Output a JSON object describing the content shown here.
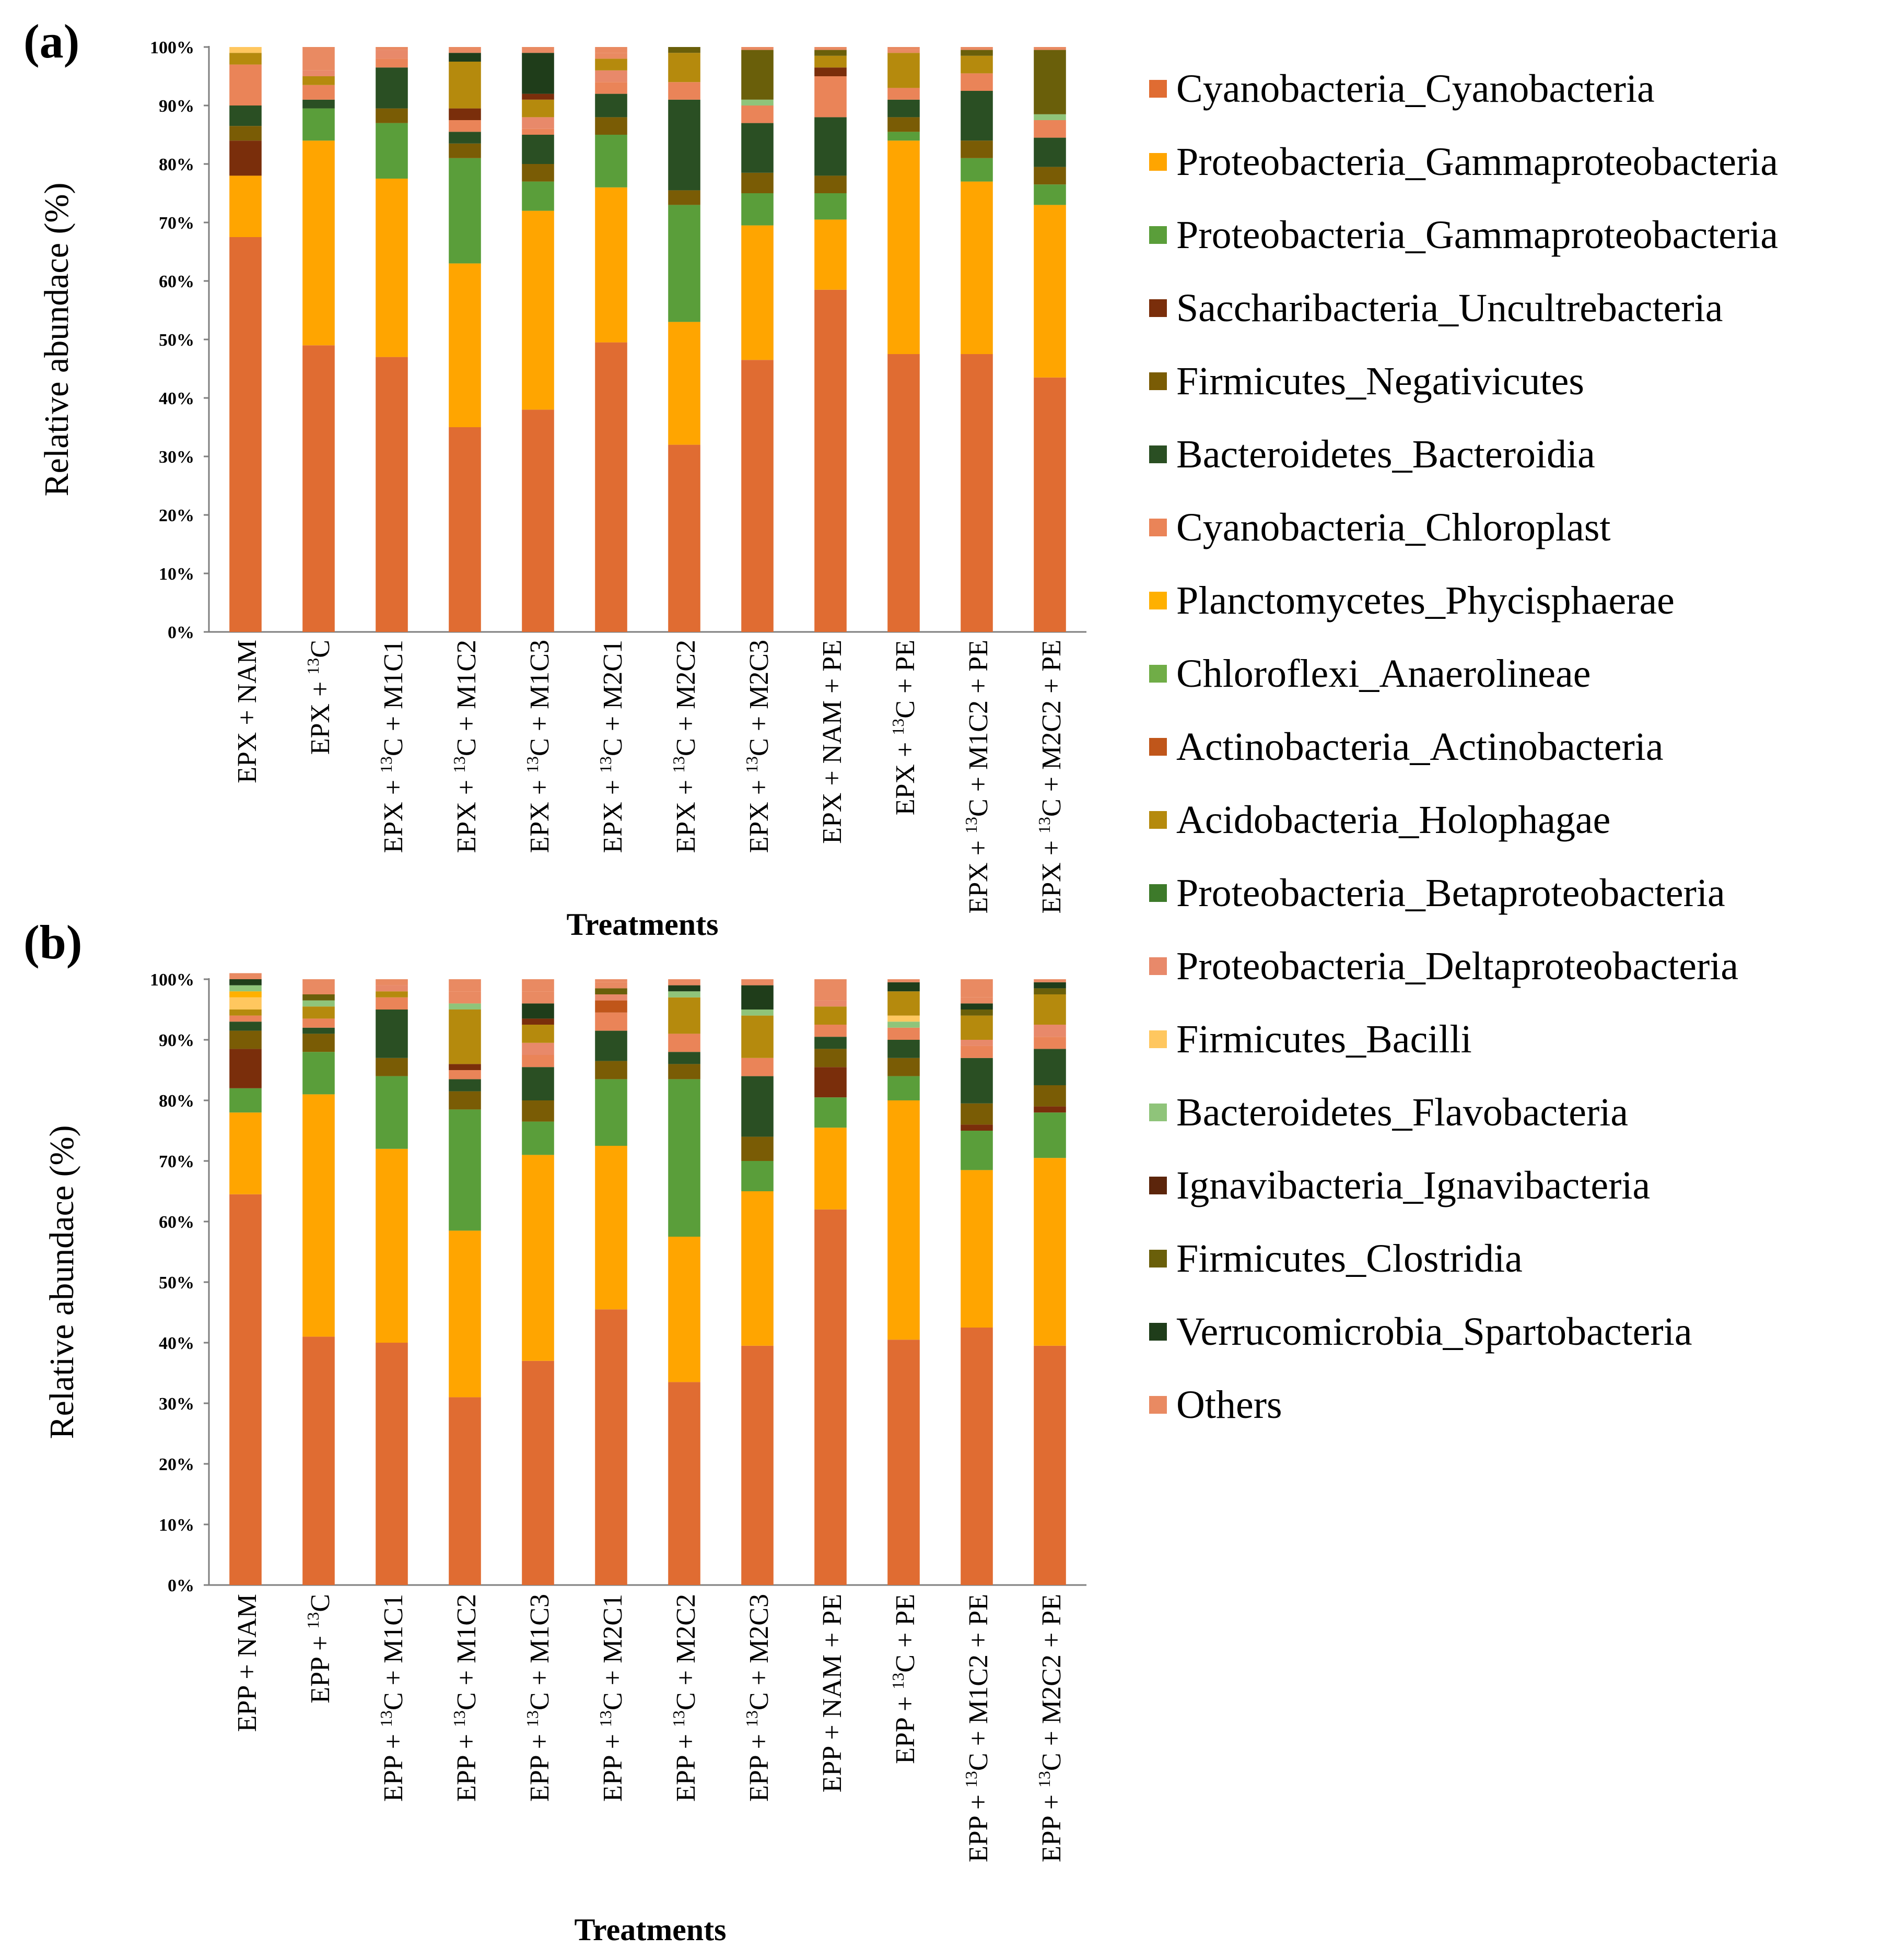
{
  "legend": {
    "items": [
      {
        "label": "Cyanobacteria_Cyanobacteria",
        "color": "#e06c32"
      },
      {
        "label": "Proteobacteria_Gammaproteobacteria",
        "color": "#ffa500"
      },
      {
        "label": "Proteobacteria_Gammaproteobacteria",
        "color": "#5a9e3a"
      },
      {
        "label": "Saccharibacteria_Uncultrebacteria",
        "color": "#7a2e0b"
      },
      {
        "label": "Firmicutes_Negativicutes",
        "color": "#7a5c05"
      },
      {
        "label": "Bacteroidetes_Bacteroidia",
        "color": "#2a4f23"
      },
      {
        "label": "Cyanobacteria_Chloroplast",
        "color": "#ea8458"
      },
      {
        "label": "Planctomycetes_Phycisphaerae",
        "color": "#ffb000"
      },
      {
        "label": "Chloroflexi_Anaerolineae",
        "color": "#70ad47"
      },
      {
        "label": "Actinobacteria_Actinobacteria",
        "color": "#c0561a"
      },
      {
        "label": "Acidobacteria_Holophagae",
        "color": "#b58a0d"
      },
      {
        "label": "Proteobacteria_Betaproteobacteria",
        "color": "#3d7a2a"
      },
      {
        "label": "Proteobacteria_Deltaproteobacteria",
        "color": "#e8896a"
      },
      {
        "label": "Firmicutes_Bacilli",
        "color": "#ffc75f"
      },
      {
        "label": "Bacteroidetes_Flavobacteria",
        "color": "#8fc47a"
      },
      {
        "label": "Ignavibacteria_Ignavibacteria",
        "color": "#5c250b"
      },
      {
        "label": "Firmicutes_Clostridia",
        "color": "#6a5f0a"
      },
      {
        "label": "Verrucomicrobia_Spartobacteria",
        "color": "#1f3d1a"
      },
      {
        "label": "Others",
        "color": "#e98a62"
      }
    ]
  },
  "chart_data": [
    {
      "type": "bar",
      "stacked": true,
      "panel_label": "(a)",
      "xlabel": "Treatments",
      "ylabel": "Relative abundace (%)",
      "ylim": [
        0,
        100
      ],
      "yticks": [
        "0%",
        "10%",
        "20%",
        "30%",
        "40%",
        "50%",
        "60%",
        "70%",
        "80%",
        "90%",
        "100%"
      ],
      "categories": [
        {
          "pre": "EPX + NAM",
          "sup": "",
          "post": ""
        },
        {
          "pre": "EPX + ",
          "sup": "13",
          "post": "C"
        },
        {
          "pre": "EPX + ",
          "sup": "13",
          "post": "C + M1C1"
        },
        {
          "pre": "EPX + ",
          "sup": "13",
          "post": "C + M1C2"
        },
        {
          "pre": "EPX + ",
          "sup": "13",
          "post": "C + M1C3"
        },
        {
          "pre": "EPX + ",
          "sup": "13",
          "post": "C + M2C1"
        },
        {
          "pre": "EPX + ",
          "sup": "13",
          "post": "C + M2C2"
        },
        {
          "pre": "EPX + ",
          "sup": "13",
          "post": "C + M2C3"
        },
        {
          "pre": "EPX + NAM + PE",
          "sup": "",
          "post": ""
        },
        {
          "pre": "EPX + ",
          "sup": "13",
          "post": "C + PE"
        },
        {
          "pre": "EPX + ",
          "sup": "13",
          "post": "C + M1C2 + PE"
        },
        {
          "pre": "EPX + ",
          "sup": "13",
          "post": "C + M2C2 + PE"
        }
      ],
      "bars": [
        [
          [
            0,
            67.5
          ],
          [
            1,
            10.5
          ],
          [
            3,
            6
          ],
          [
            4,
            2.5
          ],
          [
            5,
            3.5
          ],
          [
            6,
            7
          ],
          [
            10,
            2
          ],
          [
            13,
            1
          ]
        ],
        [
          [
            0,
            49
          ],
          [
            1,
            35
          ],
          [
            2,
            5.5
          ],
          [
            5,
            1.5
          ],
          [
            6,
            2.5
          ],
          [
            10,
            1.5
          ],
          [
            12,
            1
          ],
          [
            18,
            4
          ]
        ],
        [
          [
            0,
            47
          ],
          [
            1,
            30.5
          ],
          [
            2,
            9.5
          ],
          [
            4,
            2.5
          ],
          [
            5,
            7
          ],
          [
            6,
            1.5
          ],
          [
            12,
            1.5
          ],
          [
            18,
            0.5
          ]
        ],
        [
          [
            0,
            35
          ],
          [
            1,
            28
          ],
          [
            2,
            18
          ],
          [
            4,
            2.5
          ],
          [
            5,
            2
          ],
          [
            6,
            2
          ],
          [
            3,
            2
          ],
          [
            10,
            8
          ],
          [
            17,
            1.5
          ]
        ],
        [
          [
            0,
            38
          ],
          [
            1,
            34
          ],
          [
            2,
            5
          ],
          [
            4,
            3
          ],
          [
            5,
            5
          ],
          [
            6,
            1
          ],
          [
            12,
            2
          ],
          [
            10,
            3
          ],
          [
            3,
            1
          ],
          [
            17,
            7
          ]
        ],
        [
          [
            0,
            49.5
          ],
          [
            1,
            26.5
          ],
          [
            2,
            9
          ],
          [
            4,
            3
          ],
          [
            5,
            4
          ],
          [
            6,
            2
          ],
          [
            12,
            2
          ],
          [
            10,
            2
          ],
          [
            18,
            1
          ]
        ],
        [
          [
            0,
            32
          ],
          [
            1,
            21
          ],
          [
            2,
            20
          ],
          [
            4,
            2.5
          ],
          [
            5,
            15.5
          ],
          [
            6,
            3
          ],
          [
            10,
            5
          ],
          [
            16,
            1
          ]
        ],
        [
          [
            0,
            46.5
          ],
          [
            1,
            23
          ],
          [
            2,
            5.5
          ],
          [
            4,
            3.5
          ],
          [
            5,
            8.5
          ],
          [
            6,
            3
          ],
          [
            14,
            1
          ],
          [
            16,
            8.5
          ]
        ],
        [
          [
            0,
            58.5
          ],
          [
            1,
            12
          ],
          [
            2,
            4.5
          ],
          [
            4,
            3
          ],
          [
            5,
            10
          ],
          [
            6,
            7
          ],
          [
            3,
            1.5
          ],
          [
            10,
            2
          ],
          [
            16,
            1
          ]
        ],
        [
          [
            0,
            47.5
          ],
          [
            1,
            36.5
          ],
          [
            2,
            1.5
          ],
          [
            4,
            2.5
          ],
          [
            5,
            3
          ],
          [
            6,
            2
          ],
          [
            10,
            6
          ],
          [
            18,
            0.5
          ]
        ],
        [
          [
            0,
            47.5
          ],
          [
            1,
            29.5
          ],
          [
            2,
            4
          ],
          [
            4,
            3
          ],
          [
            5,
            8.5
          ],
          [
            6,
            3
          ],
          [
            10,
            3
          ],
          [
            16,
            1
          ]
        ],
        [
          [
            0,
            43.5
          ],
          [
            1,
            29.5
          ],
          [
            2,
            3.5
          ],
          [
            4,
            3
          ],
          [
            5,
            5
          ],
          [
            6,
            3
          ],
          [
            14,
            1
          ],
          [
            16,
            11
          ]
        ]
      ]
    },
    {
      "type": "bar",
      "stacked": true,
      "panel_label": "(b)",
      "xlabel": "Treatments",
      "ylabel": "Relative abundace (%)",
      "ylim": [
        0,
        100
      ],
      "yticks": [
        "0%",
        "10%",
        "20%",
        "30%",
        "40%",
        "50%",
        "60%",
        "70%",
        "80%",
        "90%",
        "100%"
      ],
      "categories": [
        {
          "pre": "EPP + NAM",
          "sup": "",
          "post": ""
        },
        {
          "pre": "EPP + ",
          "sup": "13",
          "post": "C"
        },
        {
          "pre": "EPP + ",
          "sup": "13",
          "post": "C + M1C1"
        },
        {
          "pre": "EPP + ",
          "sup": "13",
          "post": "C + M1C2"
        },
        {
          "pre": "EPP + ",
          "sup": "13",
          "post": "C + M1C3"
        },
        {
          "pre": "EPP + ",
          "sup": "13",
          "post": "C + M2C1"
        },
        {
          "pre": "EPP + ",
          "sup": "13",
          "post": "C + M2C2"
        },
        {
          "pre": "EPP + ",
          "sup": "13",
          "post": "C + M2C3"
        },
        {
          "pre": "EPP + NAM + PE",
          "sup": "",
          "post": ""
        },
        {
          "pre": "EPP + ",
          "sup": "13",
          "post": "C + PE"
        },
        {
          "pre": "EPP + ",
          "sup": "13",
          "post": "C + M1C2 + PE"
        },
        {
          "pre": "EPP + ",
          "sup": "13",
          "post": "C + M2C2 + PE"
        }
      ],
      "bars": [
        [
          [
            0,
            64.5
          ],
          [
            1,
            13.5
          ],
          [
            2,
            4
          ],
          [
            3,
            6.5
          ],
          [
            4,
            3
          ],
          [
            5,
            1.5
          ],
          [
            6,
            1
          ],
          [
            10,
            1
          ],
          [
            13,
            2
          ],
          [
            7,
            1
          ],
          [
            14,
            1
          ],
          [
            17,
            1
          ],
          [
            18,
            1
          ]
        ],
        [
          [
            0,
            41
          ],
          [
            1,
            40
          ],
          [
            2,
            7
          ],
          [
            4,
            3
          ],
          [
            5,
            1
          ],
          [
            6,
            1.5
          ],
          [
            10,
            2
          ],
          [
            14,
            1
          ],
          [
            16,
            1
          ],
          [
            18,
            2.5
          ]
        ],
        [
          [
            0,
            40
          ],
          [
            1,
            32
          ],
          [
            2,
            12
          ],
          [
            4,
            3
          ],
          [
            5,
            8
          ],
          [
            6,
            2
          ],
          [
            10,
            1
          ],
          [
            12,
            1
          ],
          [
            18,
            1
          ]
        ],
        [
          [
            0,
            31
          ],
          [
            1,
            27.5
          ],
          [
            2,
            20
          ],
          [
            4,
            3
          ],
          [
            5,
            2
          ],
          [
            6,
            1.5
          ],
          [
            3,
            1
          ],
          [
            10,
            9
          ],
          [
            14,
            1
          ],
          [
            18,
            2
          ]
        ],
        [
          [
            0,
            37
          ],
          [
            1,
            34
          ],
          [
            2,
            5.5
          ],
          [
            4,
            3.5
          ],
          [
            5,
            5.5
          ],
          [
            6,
            2
          ],
          [
            12,
            2
          ],
          [
            10,
            3
          ],
          [
            3,
            1
          ],
          [
            17,
            2.5
          ],
          [
            18,
            2
          ]
        ],
        [
          [
            0,
            45.5
          ],
          [
            1,
            27
          ],
          [
            2,
            11
          ],
          [
            4,
            3
          ],
          [
            5,
            5
          ],
          [
            6,
            3
          ],
          [
            9,
            2
          ],
          [
            12,
            1
          ],
          [
            16,
            1
          ],
          [
            18,
            1
          ]
        ],
        [
          [
            0,
            33.5
          ],
          [
            1,
            24
          ],
          [
            2,
            26
          ],
          [
            4,
            2.5
          ],
          [
            5,
            2
          ],
          [
            6,
            3
          ],
          [
            10,
            6
          ],
          [
            14,
            1
          ],
          [
            17,
            1
          ]
        ],
        [
          [
            0,
            39.5
          ],
          [
            1,
            25.5
          ],
          [
            2,
            5
          ],
          [
            4,
            4
          ],
          [
            5,
            10
          ],
          [
            6,
            3
          ],
          [
            10,
            7
          ],
          [
            14,
            1
          ],
          [
            17,
            4
          ]
        ],
        [
          [
            0,
            62
          ],
          [
            1,
            13.5
          ],
          [
            2,
            5
          ],
          [
            3,
            5
          ],
          [
            4,
            3
          ],
          [
            5,
            2
          ],
          [
            6,
            2
          ],
          [
            10,
            3
          ],
          [
            12,
            1
          ],
          [
            18,
            1
          ]
        ],
        [
          [
            0,
            40.5
          ],
          [
            1,
            39.5
          ],
          [
            2,
            4
          ],
          [
            4,
            3
          ],
          [
            5,
            3
          ],
          [
            6,
            2
          ],
          [
            14,
            1
          ],
          [
            13,
            1
          ],
          [
            10,
            4
          ],
          [
            17,
            1.5
          ]
        ],
        [
          [
            0,
            42.5
          ],
          [
            1,
            26
          ],
          [
            2,
            6.5
          ],
          [
            3,
            1
          ],
          [
            4,
            3.5
          ],
          [
            5,
            7.5
          ],
          [
            6,
            2
          ],
          [
            12,
            1
          ],
          [
            10,
            4
          ],
          [
            16,
            1
          ],
          [
            17,
            1
          ],
          [
            18,
            1
          ]
        ],
        [
          [
            0,
            39.5
          ],
          [
            1,
            31
          ],
          [
            2,
            7.5
          ],
          [
            3,
            1
          ],
          [
            4,
            3.5
          ],
          [
            5,
            6
          ],
          [
            6,
            2
          ],
          [
            12,
            2
          ],
          [
            10,
            5
          ],
          [
            16,
            1
          ],
          [
            17,
            1
          ]
        ]
      ]
    }
  ]
}
